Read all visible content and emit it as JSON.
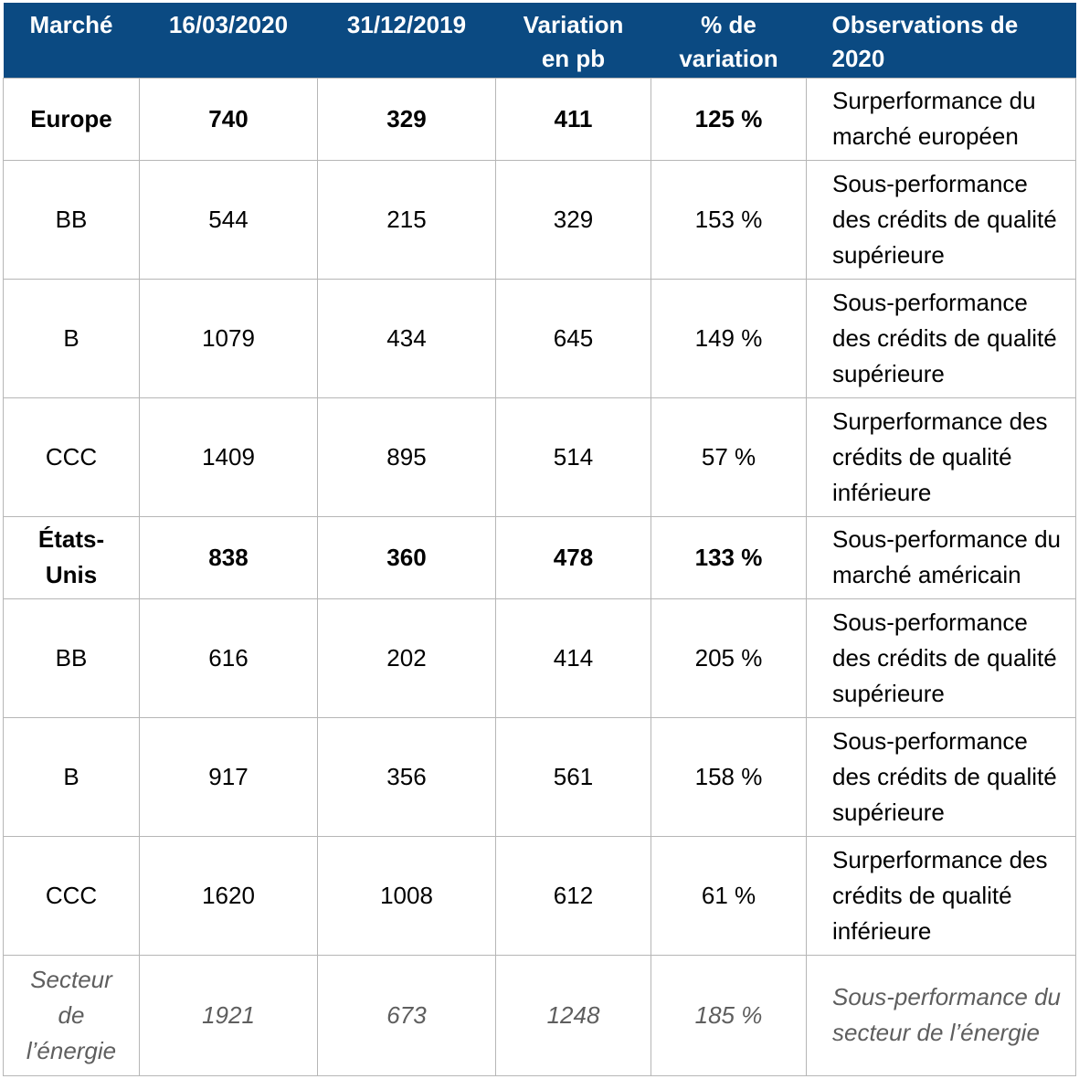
{
  "header": {
    "col0": "Marché",
    "col1": "16/03/2020",
    "col2": "31/12/2019",
    "col3_line1": "Variation",
    "col3_line2": "en pb",
    "col4_line1": "% de",
    "col4_line2": "variation",
    "col5_line1": "Observations de",
    "col5_line2": "2020"
  },
  "rows": [
    {
      "market": "Europe",
      "d2020": "740",
      "d2019": "329",
      "var_pb": "411",
      "var_pct": "125 %",
      "obs_line1": "Surperformance du",
      "obs_line2": "marché européen"
    },
    {
      "market": "BB",
      "d2020": "544",
      "d2019": "215",
      "var_pb": "329",
      "var_pct": "153 %",
      "obs_line1": "Sous-performance",
      "obs_line2": "des crédits de qualité",
      "obs_line3": "supérieure"
    },
    {
      "market": "B",
      "d2020": "1079",
      "d2019": "434",
      "var_pb": "645",
      "var_pct": "149 %",
      "obs_line1": "Sous-performance",
      "obs_line2": "des crédits de qualité",
      "obs_line3": "supérieure"
    },
    {
      "market": "CCC",
      "d2020": "1409",
      "d2019": "895",
      "var_pb": "514",
      "var_pct": "57 %",
      "obs_line1": "Surperformance des",
      "obs_line2": "crédits de qualité",
      "obs_line3": "inférieure"
    },
    {
      "market_line1": "États-",
      "market_line2": "Unis",
      "d2020": "838",
      "d2019": "360",
      "var_pb": "478",
      "var_pct": "133 %",
      "obs_line1": "Sous-performance du",
      "obs_line2": "marché américain"
    },
    {
      "market": "BB",
      "d2020": "616",
      "d2019": "202",
      "var_pb": "414",
      "var_pct": "205 %",
      "obs_line1": "Sous-performance",
      "obs_line2": "des crédits de qualité",
      "obs_line3": "supérieure"
    },
    {
      "market": "B",
      "d2020": "917",
      "d2019": "356",
      "var_pb": "561",
      "var_pct": "158 %",
      "obs_line1": "Sous-performance",
      "obs_line2": "des crédits de qualité",
      "obs_line3": "supérieure"
    },
    {
      "market": "CCC",
      "d2020": "1620",
      "d2019": "1008",
      "var_pb": "612",
      "var_pct": "61 %",
      "obs_line1": "Surperformance des",
      "obs_line2": "crédits de qualité",
      "obs_line3": "inférieure"
    },
    {
      "market_line1": "Secteur",
      "market_line2": "de",
      "market_line3": "l’énergie",
      "d2020": "1921",
      "d2019": "673",
      "var_pb": "1248",
      "var_pct": "185 %",
      "obs_line1": "Sous-performance du",
      "obs_line2": "secteur de l’énergie"
    }
  ],
  "colors": {
    "header_bg": "#0b4a82",
    "header_text": "#ffffff",
    "grid": "#b6b6b6",
    "italic_text": "#5e5e5e"
  }
}
